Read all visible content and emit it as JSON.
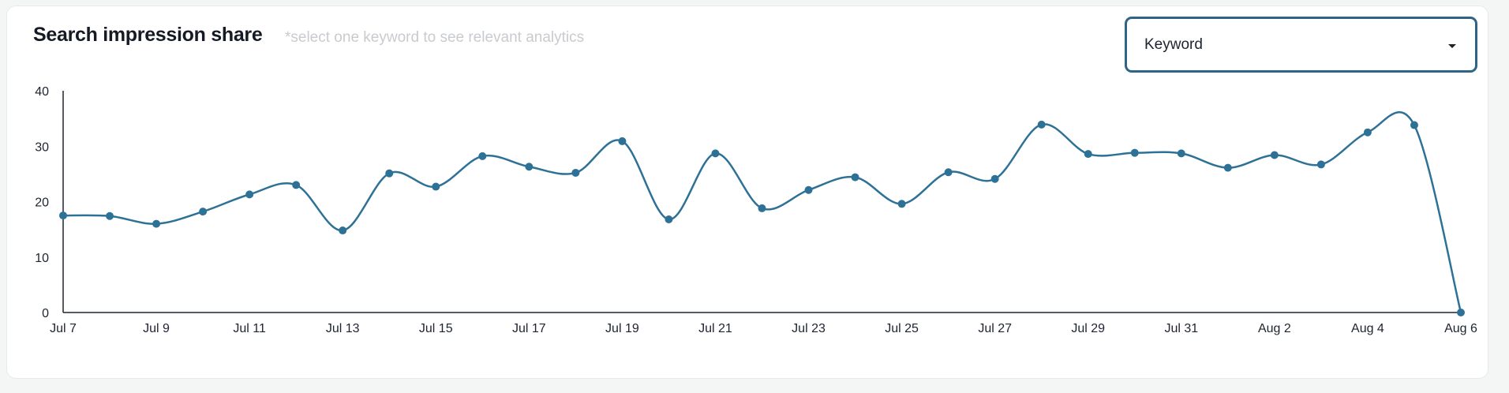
{
  "header": {
    "title": "Search impression share",
    "hint": "*select one keyword to see relevant analytics"
  },
  "filter": {
    "label": "Keyword",
    "icon": "caret-down-icon"
  },
  "colors": {
    "line": "#2e7196",
    "axis": "#1d2330",
    "accent": "#2e6587"
  },
  "chart_data": {
    "type": "line",
    "x": [
      "Jul 7",
      "Jul 8",
      "Jul 9",
      "Jul 10",
      "Jul 11",
      "Jul 12",
      "Jul 13",
      "Jul 14",
      "Jul 15",
      "Jul 16",
      "Jul 17",
      "Jul 18",
      "Jul 19",
      "Jul 20",
      "Jul 21",
      "Jul 22",
      "Jul 23",
      "Jul 24",
      "Jul 25",
      "Jul 26",
      "Jul 27",
      "Jul 28",
      "Jul 29",
      "Jul 30",
      "Jul 31",
      "Aug 1",
      "Aug 2",
      "Aug 3",
      "Aug 4",
      "Aug 5",
      "Aug 6"
    ],
    "x_tick_labels": [
      "Jul 7",
      "Jul 9",
      "Jul 11",
      "Jul 13",
      "Jul 15",
      "Jul 17",
      "Jul 19",
      "Jul 21",
      "Jul 23",
      "Jul 25",
      "Jul 27",
      "Jul 29",
      "Jul 31",
      "Aug 2",
      "Aug 4",
      "Aug 6"
    ],
    "series": [
      {
        "values": [
          17.5,
          17.4,
          16.0,
          18.2,
          21.3,
          23.0,
          14.8,
          25.1,
          22.7,
          28.2,
          26.3,
          25.2,
          30.9,
          16.8,
          28.7,
          18.8,
          22.1,
          24.4,
          19.6,
          25.3,
          24.1,
          33.9,
          28.6,
          28.8,
          28.7,
          26.1,
          28.4,
          26.7,
          32.5,
          33.8,
          0.0
        ]
      }
    ],
    "title": "Search impression share",
    "xlabel": "",
    "ylabel": "",
    "ylim": [
      0,
      40
    ],
    "y_ticks": [
      0,
      10,
      20,
      30,
      40
    ],
    "grid": false,
    "legend": "none",
    "smooth": true
  }
}
